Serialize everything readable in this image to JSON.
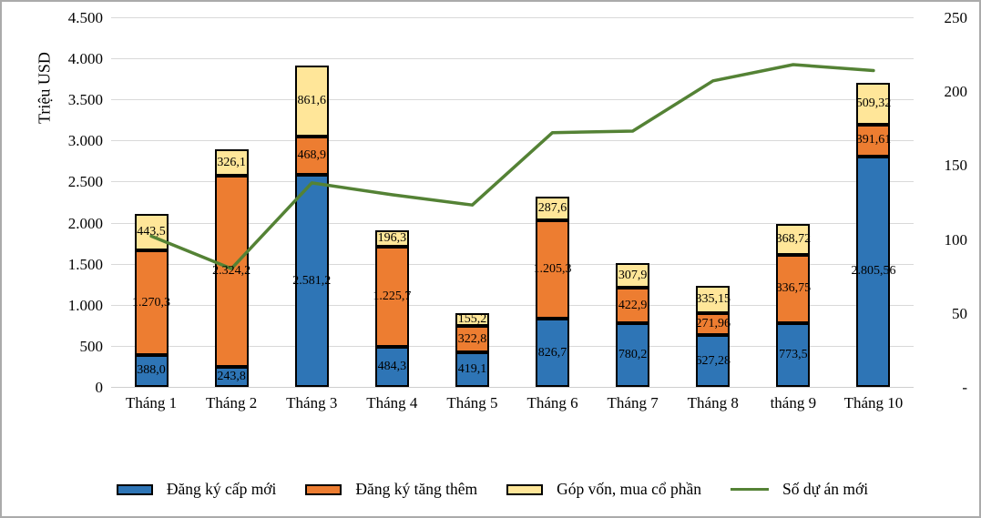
{
  "chart_data": {
    "type": "bar",
    "subtype": "stacked-bars-with-line-overlay",
    "categories": [
      "Tháng 1",
      "Tháng 2",
      "Tháng 3",
      "Tháng 4",
      "Tháng 5",
      "Tháng 6",
      "Tháng 7",
      "Tháng 8",
      "tháng 9",
      "Tháng 10"
    ],
    "y_axis_left": {
      "title": "Triệu USD",
      "ticks": [
        "4.500",
        "4.000",
        "3.500",
        "3.000",
        "2.500",
        "2.000",
        "1.500",
        "1.000",
        "500",
        "0"
      ],
      "range": [
        0,
        4500
      ]
    },
    "y_axis_right": {
      "ticks": [
        "250",
        "200",
        "150",
        "100",
        "50",
        "-"
      ],
      "range": [
        0,
        250
      ]
    },
    "series": [
      {
        "name": "Đăng ký cấp mới",
        "type": "bar",
        "color": "#2E75B6",
        "values": [
          388.0,
          243.8,
          2581.2,
          484.3,
          419.1,
          826.7,
          780.2,
          627.28,
          773.5,
          2805.56
        ],
        "labels": [
          "388,0",
          "243,8",
          "2.581,2",
          "484,3",
          "419,1",
          "826,7",
          "780,2",
          "627,28",
          "773,5",
          "2.805,56"
        ]
      },
      {
        "name": "Đăng ký tăng thêm",
        "type": "bar",
        "color": "#ED7D31",
        "values": [
          1270.3,
          2324.2,
          468.9,
          1225.7,
          322.8,
          1205.3,
          422.9,
          271.96,
          836.75,
          391.61
        ],
        "labels": [
          "1.270,3",
          "2.324,2",
          "468,9",
          "1.225,7",
          "322,8",
          "1.205,3",
          "422,9",
          "271,96",
          "836,75",
          "391,61"
        ]
      },
      {
        "name": "Góp vốn, mua cổ phần",
        "type": "bar",
        "color": "#FFE699",
        "values": [
          443.5,
          326.1,
          861.6,
          196.3,
          155.2,
          287.6,
          307.9,
          335.15,
          368.72,
          509.32
        ],
        "labels": [
          "443,5",
          "326,1",
          "861,6",
          "196,3",
          "155,2",
          "287,6",
          "307,9",
          "335,15",
          "368,72",
          "509,32"
        ]
      },
      {
        "name": "Số dự án mới",
        "type": "line",
        "color": "#548235",
        "values": [
          102,
          80,
          138,
          130,
          123,
          172,
          173,
          207,
          218,
          214
        ]
      }
    ],
    "legend": [
      {
        "label": "Đăng ký cấp mới",
        "color": "#2E75B6",
        "swatch": "box"
      },
      {
        "label": "Đăng ký tăng thêm",
        "color": "#ED7D31",
        "swatch": "box"
      },
      {
        "label": "Góp vốn, mua cổ phần",
        "color": "#FFE699",
        "swatch": "box"
      },
      {
        "label": "Số dự án mới",
        "color": "#548235",
        "swatch": "line"
      }
    ],
    "grid": true,
    "legend_position": "bottom"
  }
}
